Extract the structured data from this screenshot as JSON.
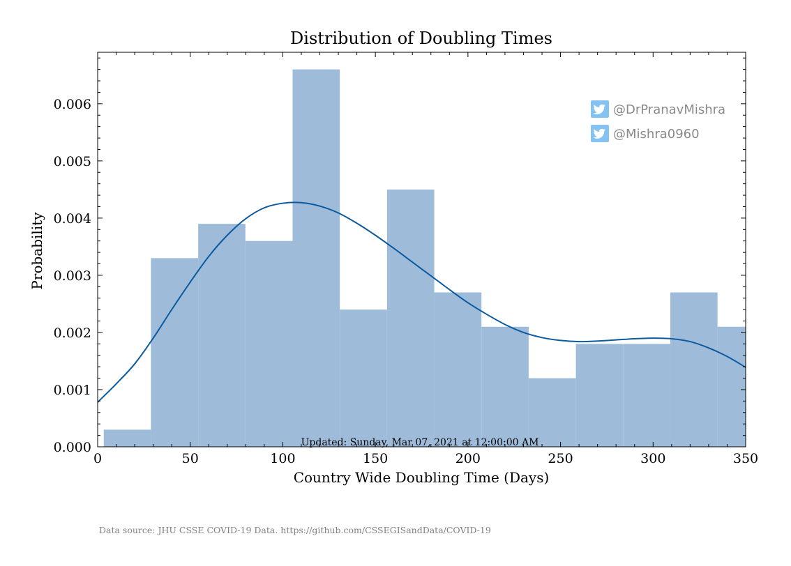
{
  "chart_data": {
    "type": "bar",
    "title": "Distribution of Doubling Times",
    "xlabel": "Country Wide Doubling Time (Days)",
    "ylabel": "Probability",
    "xlim": [
      0,
      350
    ],
    "ylim": [
      0,
      0.0069
    ],
    "xticks": [
      0,
      50,
      100,
      150,
      200,
      250,
      300,
      350
    ],
    "xtick_labels": [
      "0",
      "50",
      "100",
      "150",
      "200",
      "250",
      "300",
      "350"
    ],
    "yticks": [
      0,
      0.001,
      0.002,
      0.003,
      0.004,
      0.005,
      0.006
    ],
    "ytick_labels": [
      "0.000",
      "0.001",
      "0.002",
      "0.003",
      "0.004",
      "0.005",
      "0.006"
    ],
    "bins": [
      {
        "start": 3.3,
        "end": 28.8,
        "value": 0.0003
      },
      {
        "start": 28.8,
        "end": 54.3,
        "value": 0.0033
      },
      {
        "start": 54.3,
        "end": 79.8,
        "value": 0.0039
      },
      {
        "start": 79.8,
        "end": 105.3,
        "value": 0.0036
      },
      {
        "start": 105.3,
        "end": 130.8,
        "value": 0.0066
      },
      {
        "start": 130.8,
        "end": 156.3,
        "value": 0.0024
      },
      {
        "start": 156.3,
        "end": 181.8,
        "value": 0.0045
      },
      {
        "start": 181.8,
        "end": 207.3,
        "value": 0.0027
      },
      {
        "start": 207.3,
        "end": 232.8,
        "value": 0.0021
      },
      {
        "start": 232.8,
        "end": 258.3,
        "value": 0.0012
      },
      {
        "start": 258.3,
        "end": 283.8,
        "value": 0.0018
      },
      {
        "start": 283.8,
        "end": 309.3,
        "value": 0.0018
      },
      {
        "start": 309.3,
        "end": 334.8,
        "value": 0.0027
      },
      {
        "start": 334.8,
        "end": 360.3,
        "value": 0.0021
      }
    ],
    "kde": {
      "x": [
        0,
        10,
        20,
        30,
        40,
        50,
        60,
        70,
        80,
        90,
        100,
        110,
        120,
        130,
        140,
        150,
        160,
        170,
        180,
        190,
        200,
        210,
        220,
        230,
        240,
        250,
        260,
        270,
        280,
        290,
        300,
        310,
        320,
        330,
        340,
        350
      ],
      "y": [
        0.00078,
        0.0011,
        0.00145,
        0.0019,
        0.0024,
        0.00288,
        0.00333,
        0.0037,
        0.00399,
        0.00418,
        0.00426,
        0.00427,
        0.00421,
        0.00409,
        0.00391,
        0.0037,
        0.00347,
        0.00323,
        0.00299,
        0.00275,
        0.00252,
        0.00232,
        0.00214,
        0.002,
        0.00191,
        0.00186,
        0.00184,
        0.00185,
        0.00187,
        0.00189,
        0.0019,
        0.00189,
        0.00184,
        0.00173,
        0.00158,
        0.00139
      ]
    },
    "colors": {
      "bars": "#9ebcda",
      "kde": "#0b5aa0",
      "twitter": "#84c3f1"
    },
    "annotations": {
      "updated": "Updated: Sunday, Mar 07, 2021 at 12:00:00 AM",
      "source": "Data source: JHU CSSE COVID-19 Data. https://github.com/CSSEGISandData/COVID-19"
    },
    "legend": {
      "placement": "top-right",
      "items": [
        {
          "icon": "twitter-bird-icon",
          "text": "@DrPranavMishra"
        },
        {
          "icon": "twitter-bird-icon",
          "text": "@Mishra0960"
        }
      ]
    },
    "grid": false
  }
}
